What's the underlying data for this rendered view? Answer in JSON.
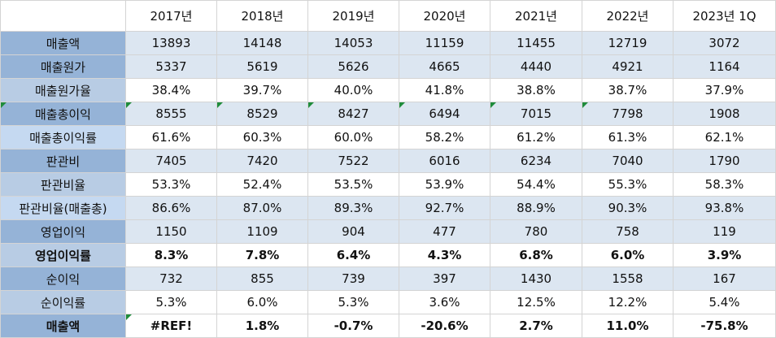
{
  "sheet": {
    "years": [
      "2017년",
      "2018년",
      "2019년",
      "2020년",
      "2021년",
      "2022년",
      "2023년 1Q"
    ],
    "rows": [
      {
        "label": "매출액",
        "values": [
          "13893",
          "14148",
          "14053",
          "11159",
          "11455",
          "12719",
          "3072"
        ]
      },
      {
        "label": "매출원가",
        "values": [
          "5337",
          "5619",
          "5626",
          "4665",
          "4440",
          "4921",
          "1164"
        ]
      },
      {
        "label": "매출원가율",
        "values": [
          "38.4%",
          "39.7%",
          "40.0%",
          "41.8%",
          "38.8%",
          "38.7%",
          "37.9%"
        ]
      },
      {
        "label": "매출총이익",
        "values": [
          "8555",
          "8529",
          "8427",
          "6494",
          "7015",
          "7798",
          "1908"
        ]
      },
      {
        "label": "매출총이익률",
        "values": [
          "61.6%",
          "60.3%",
          "60.0%",
          "58.2%",
          "61.2%",
          "61.3%",
          "62.1%"
        ]
      },
      {
        "label": "판관비",
        "values": [
          "7405",
          "7420",
          "7522",
          "6016",
          "6234",
          "7040",
          "1790"
        ]
      },
      {
        "label": "판관비율",
        "values": [
          "53.3%",
          "52.4%",
          "53.5%",
          "53.9%",
          "54.4%",
          "55.3%",
          "58.3%"
        ]
      },
      {
        "label": "판관비율(매출총)",
        "values": [
          "86.6%",
          "87.0%",
          "89.3%",
          "92.7%",
          "88.9%",
          "90.3%",
          "93.8%"
        ]
      },
      {
        "label": "영업이익",
        "values": [
          "1150",
          "1109",
          "904",
          "477",
          "780",
          "758",
          "119"
        ]
      },
      {
        "label": "영업이익률",
        "values": [
          "8.3%",
          "7.8%",
          "6.4%",
          "4.3%",
          "6.8%",
          "6.0%",
          "3.9%"
        ]
      },
      {
        "label": "순이익",
        "values": [
          "732",
          "855",
          "739",
          "397",
          "1430",
          "1558",
          "167"
        ]
      },
      {
        "label": "순이익률",
        "values": [
          "5.3%",
          "6.0%",
          "5.3%",
          "3.6%",
          "12.5%",
          "12.2%",
          "5.4%"
        ]
      },
      {
        "label": "매출액",
        "values": [
          "#REF!",
          "1.8%",
          "-0.7%",
          "-20.6%",
          "2.7%",
          "11.0%",
          "-75.8%"
        ]
      }
    ],
    "colors": {
      "label_dark": "#95b3d7",
      "label_light": "#b8cce4",
      "band": "#dce6f1",
      "note_marker": "#1f8c3b"
    }
  }
}
